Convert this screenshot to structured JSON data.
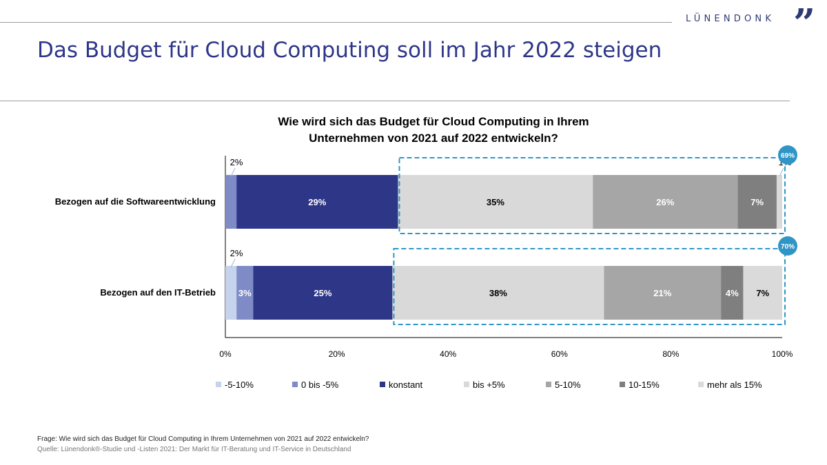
{
  "header": {
    "brand": "LÜNENDONK",
    "brand_mark": "”",
    "title": "Das Budget für Cloud Computing soll im Jahr 2022 steigen"
  },
  "chart_data": {
    "type": "bar",
    "orientation": "horizontal",
    "stacked": true,
    "title": "Wie wird sich das Budget für Cloud Computing in Ihrem Unternehmen von 2021 auf 2022 entwickeln?",
    "title_lines": [
      "Wie wird sich das Budget für Cloud Computing in Ihrem",
      "Unternehmen von 2021 auf 2022 entwickeln?"
    ],
    "categories": [
      "Bezogen auf die Softwareentwicklung",
      "Bezogen auf den IT-Betrieb"
    ],
    "xlim": [
      0,
      100
    ],
    "x_ticks": [
      "0%",
      "20%",
      "40%",
      "60%",
      "80%",
      "100%"
    ],
    "legend_position": "bottom",
    "series": [
      {
        "name": "-5-10%",
        "color": "#c5d4ec",
        "values": [
          0,
          2
        ],
        "labels": [
          "",
          "2%"
        ]
      },
      {
        "name": "0 bis -5%",
        "color": "#7f8bc6",
        "values": [
          2,
          3
        ],
        "labels": [
          "2%",
          "3%"
        ]
      },
      {
        "name": "konstant",
        "color": "#2e3688",
        "values": [
          29,
          25
        ],
        "labels": [
          "29%",
          "25%"
        ]
      },
      {
        "name": "bis +5%",
        "color": "#d9d9d9",
        "values": [
          35,
          38
        ],
        "labels": [
          "35%",
          "38%"
        ]
      },
      {
        "name": "5-10%",
        "color": "#a6a6a6",
        "values": [
          26,
          21
        ],
        "labels": [
          "26%",
          "21%"
        ]
      },
      {
        "name": "10-15%",
        "color": "#7f7f7f",
        "values": [
          7,
          4
        ],
        "labels": [
          "7%",
          "4%"
        ]
      },
      {
        "name": "mehr als 15%",
        "color": "#dadada",
        "values": [
          1,
          7
        ],
        "labels": [
          "1%",
          "7%"
        ]
      }
    ],
    "callouts": [
      "69%",
      "70%"
    ],
    "callout_color": "#2f95c6"
  },
  "footer": {
    "question": "Frage: Wie wird sich das Budget für Cloud Computing in Ihrem Unternehmen von 2021 auf 2022  entwickeln?",
    "source": "Quelle: Lünendonk®-Studie  und  -Listen 2021: Der Markt für IT-Beratung und IT-Service in Deutschland"
  }
}
